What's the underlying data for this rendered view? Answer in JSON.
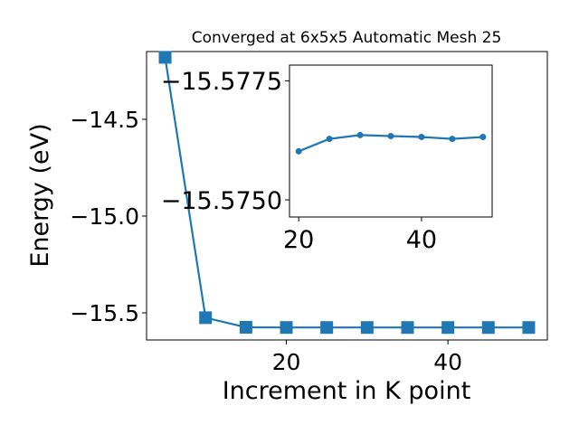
{
  "chart_data": [
    {
      "type": "line",
      "title": "Converged at 6x5x5 Automatic Mesh 25",
      "xlabel": "Increment in K point",
      "ylabel": "Energy (eV)",
      "xlim": [
        2.7,
        52.3
      ],
      "ylim": [
        -15.64,
        -14.15
      ],
      "xticks": [
        20,
        40
      ],
      "yticks": [
        -15.5,
        -15.0,
        -14.5
      ],
      "ytick_labels": [
        "−15.5",
        "−15.0",
        "−14.5"
      ],
      "marker": "square",
      "color": "#1f77b4",
      "x": [
        5,
        10,
        15,
        20,
        25,
        30,
        35,
        40,
        45,
        50
      ],
      "y": [
        -14.18,
        -15.525,
        -15.5745,
        -15.5755,
        -15.5756,
        -15.5756,
        -15.5756,
        -15.5756,
        -15.5756,
        -15.5756
      ]
    },
    {
      "type": "line",
      "title": "",
      "xlabel": "",
      "ylabel": "",
      "xlim": [
        18.5,
        51.5
      ],
      "ylim": [
        -15.57464,
        -15.57783
      ],
      "xticks": [
        20,
        40
      ],
      "yticks": [
        -15.5775,
        -15.575
      ],
      "ytick_labels": [
        "−15.5775",
        "−15.5750"
      ],
      "y_inverted": true,
      "marker": "circle",
      "color": "#1f77b4",
      "x": [
        20,
        25,
        30,
        35,
        40,
        45,
        50
      ],
      "y": [
        -15.57602,
        -15.57628,
        -15.57636,
        -15.57634,
        -15.57632,
        -15.57628,
        -15.57632
      ]
    }
  ]
}
